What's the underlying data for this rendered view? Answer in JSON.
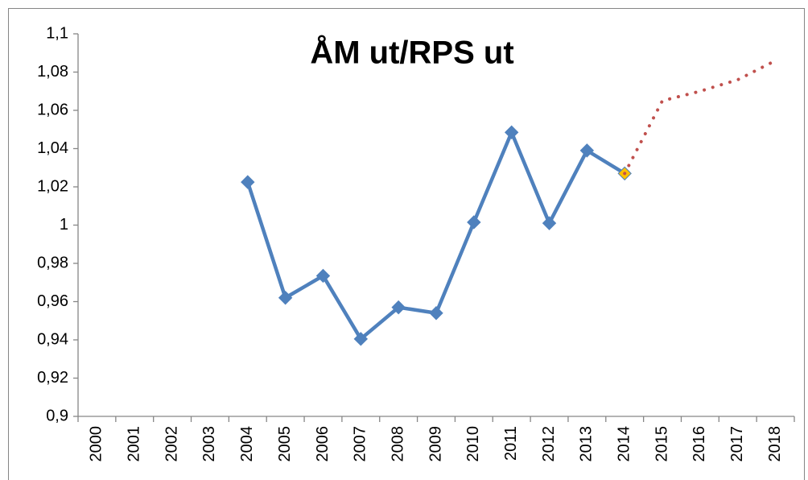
{
  "chart_data": {
    "type": "line",
    "title": "ÅM ut/RPS ut",
    "categories": [
      "2000",
      "2001",
      "2002",
      "2003",
      "2004",
      "2005",
      "2006",
      "2007",
      "2008",
      "2009",
      "2010",
      "2011",
      "2012",
      "2013",
      "2014",
      "2015",
      "2016",
      "2017",
      "2018"
    ],
    "series": [
      {
        "color": "#4f81bd",
        "style": "solid",
        "marker": "diamond",
        "values": [
          null,
          null,
          null,
          null,
          1.0225,
          0.962,
          0.9735,
          0.9405,
          0.957,
          0.954,
          1.0015,
          1.0485,
          1.001,
          1.039,
          1.027,
          null,
          null,
          null,
          null
        ],
        "marker_colors": [
          null,
          null,
          null,
          null,
          null,
          null,
          null,
          null,
          null,
          null,
          null,
          null,
          null,
          null,
          "#ffc000",
          null,
          null,
          null,
          null
        ]
      },
      {
        "color": "#c0504d",
        "style": "dotted",
        "marker": "none",
        "values": [
          null,
          null,
          null,
          null,
          null,
          null,
          null,
          null,
          null,
          null,
          null,
          null,
          null,
          null,
          1.027,
          1.065,
          1.07,
          1.076,
          1.086
        ]
      }
    ],
    "ylim": [
      0.9,
      1.1
    ],
    "yticks": [
      {
        "value": 0.9,
        "label": "0,9"
      },
      {
        "value": 0.92,
        "label": "0,92"
      },
      {
        "value": 0.94,
        "label": "0,94"
      },
      {
        "value": 0.96,
        "label": "0,96"
      },
      {
        "value": 0.98,
        "label": "0,98"
      },
      1,
      {
        "value": 1.02,
        "label": "1,02"
      },
      {
        "value": 1.04,
        "label": "1,04"
      },
      {
        "value": 1.06,
        "label": "1,06"
      },
      {
        "value": 1.08,
        "label": "1,08"
      },
      {
        "value": 1.1,
        "label": "1,1"
      }
    ],
    "grid": false
  }
}
